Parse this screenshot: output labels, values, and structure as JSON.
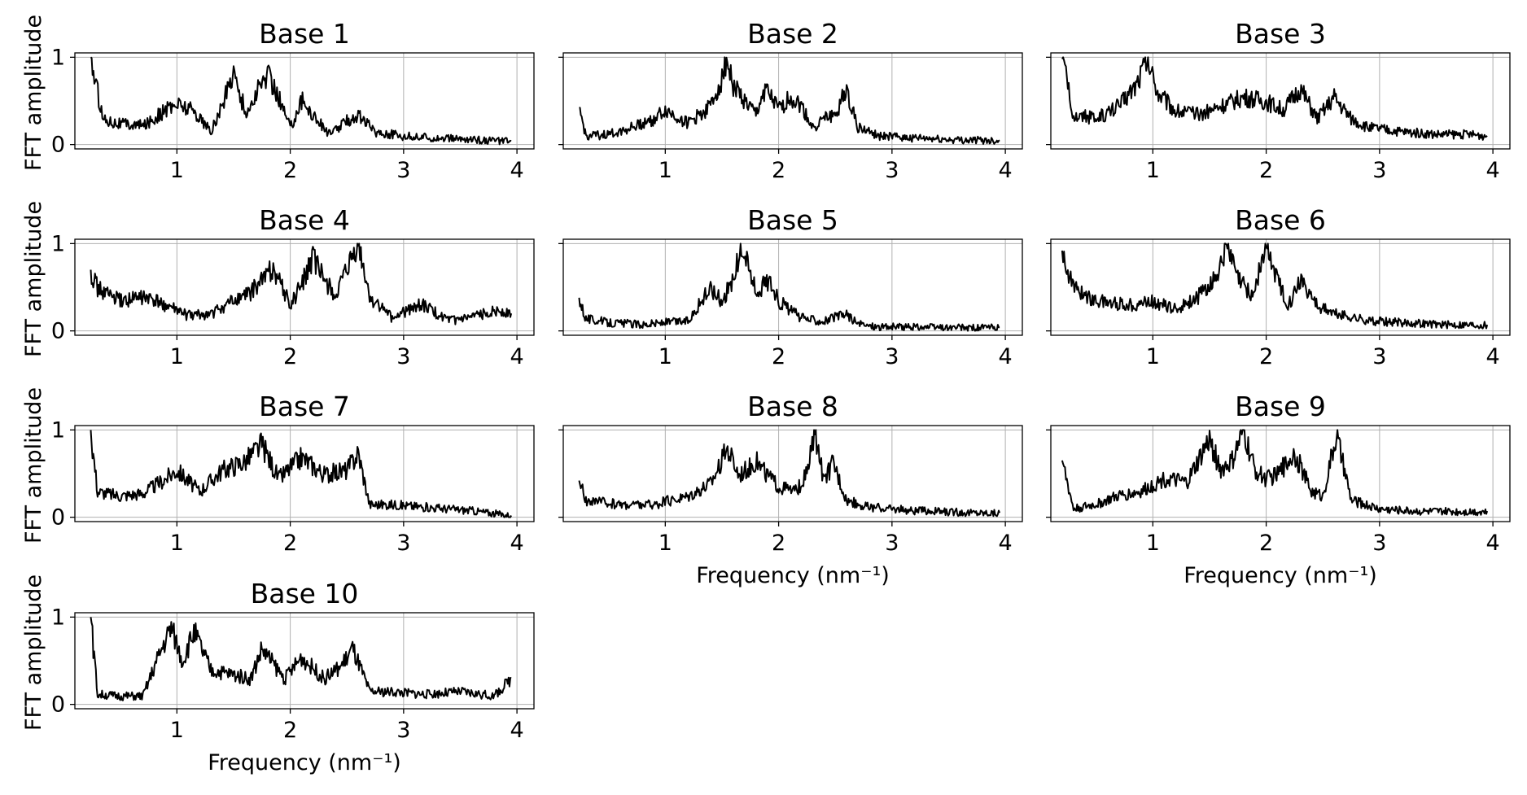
{
  "figure": {
    "chart_data": [
      {
        "type": "line",
        "title": "Base 1",
        "xlabel": "",
        "ylabel": "FFT amplitude",
        "xlim": [
          0.1,
          4.15
        ],
        "ylim": [
          -0.05,
          1.05
        ],
        "xticks": [
          1,
          2,
          3,
          4
        ],
        "yticks": [
          0,
          1
        ],
        "grid": true,
        "x": [
          0.24,
          0.35,
          0.5,
          0.7,
          0.9,
          1.0,
          1.15,
          1.3,
          1.4,
          1.5,
          1.55,
          1.62,
          1.7,
          1.8,
          1.9,
          2.0,
          2.1,
          2.2,
          2.35,
          2.5,
          2.6,
          2.75,
          3.0,
          3.3,
          3.6,
          3.95
        ],
        "y": [
          1.0,
          0.3,
          0.25,
          0.22,
          0.4,
          0.48,
          0.4,
          0.15,
          0.45,
          0.88,
          0.6,
          0.35,
          0.6,
          0.82,
          0.55,
          0.2,
          0.52,
          0.35,
          0.12,
          0.28,
          0.35,
          0.15,
          0.1,
          0.08,
          0.06,
          0.04
        ]
      },
      {
        "type": "line",
        "title": "Base 2",
        "xlabel": "",
        "ylabel": "",
        "xlim": [
          0.1,
          4.15
        ],
        "ylim": [
          -0.05,
          1.05
        ],
        "xticks": [
          1,
          2,
          3,
          4
        ],
        "yticks": [
          0,
          1
        ],
        "grid": true,
        "x": [
          0.24,
          0.3,
          0.5,
          0.7,
          0.9,
          1.0,
          1.2,
          1.4,
          1.5,
          1.54,
          1.6,
          1.7,
          1.8,
          1.88,
          2.0,
          2.1,
          2.2,
          2.3,
          2.4,
          2.5,
          2.6,
          2.7,
          2.9,
          3.2,
          3.5,
          3.95
        ],
        "y": [
          0.42,
          0.1,
          0.12,
          0.2,
          0.3,
          0.4,
          0.25,
          0.45,
          0.78,
          1.0,
          0.7,
          0.5,
          0.35,
          0.65,
          0.4,
          0.55,
          0.45,
          0.2,
          0.3,
          0.35,
          0.65,
          0.2,
          0.1,
          0.08,
          0.06,
          0.05
        ]
      },
      {
        "type": "line",
        "title": "Base 3",
        "xlabel": "",
        "ylabel": "",
        "xlim": [
          0.1,
          4.15
        ],
        "ylim": [
          -0.05,
          1.05
        ],
        "xticks": [
          1,
          2,
          3,
          4
        ],
        "yticks": [
          0,
          1
        ],
        "grid": true,
        "x": [
          0.2,
          0.3,
          0.5,
          0.7,
          0.85,
          0.95,
          1.05,
          1.2,
          1.4,
          1.6,
          1.8,
          2.0,
          2.15,
          2.3,
          2.45,
          2.6,
          2.75,
          2.9,
          3.2,
          3.5,
          3.8,
          3.95
        ],
        "y": [
          0.98,
          0.35,
          0.3,
          0.45,
          0.7,
          1.0,
          0.6,
          0.4,
          0.35,
          0.45,
          0.55,
          0.5,
          0.4,
          0.65,
          0.3,
          0.55,
          0.3,
          0.2,
          0.15,
          0.12,
          0.12,
          0.1
        ]
      },
      {
        "type": "line",
        "title": "Base 4",
        "xlabel": "",
        "ylabel": "FFT amplitude",
        "xlim": [
          0.1,
          4.15
        ],
        "ylim": [
          -0.05,
          1.05
        ],
        "xticks": [
          1,
          2,
          3,
          4
        ],
        "yticks": [
          0,
          1
        ],
        "grid": true,
        "x": [
          0.24,
          0.3,
          0.5,
          0.7,
          0.9,
          1.1,
          1.3,
          1.5,
          1.65,
          1.85,
          2.0,
          2.1,
          2.2,
          2.3,
          2.4,
          2.5,
          2.6,
          2.7,
          2.9,
          3.15,
          3.4,
          3.6,
          3.8,
          3.95
        ],
        "y": [
          0.7,
          0.5,
          0.35,
          0.4,
          0.3,
          0.18,
          0.2,
          0.35,
          0.45,
          0.75,
          0.3,
          0.55,
          0.85,
          0.6,
          0.4,
          0.7,
          1.0,
          0.4,
          0.15,
          0.32,
          0.12,
          0.15,
          0.25,
          0.2
        ]
      },
      {
        "type": "line",
        "title": "Base 5",
        "xlabel": "",
        "ylabel": "",
        "xlim": [
          0.1,
          4.15
        ],
        "ylim": [
          -0.05,
          1.05
        ],
        "xticks": [
          1,
          2,
          3,
          4
        ],
        "yticks": [
          0,
          1
        ],
        "grid": true,
        "x": [
          0.24,
          0.3,
          0.5,
          0.8,
          1.0,
          1.2,
          1.4,
          1.5,
          1.6,
          1.68,
          1.8,
          1.92,
          2.0,
          2.2,
          2.4,
          2.6,
          2.7,
          2.9,
          3.2,
          3.5,
          3.95
        ],
        "y": [
          0.38,
          0.15,
          0.1,
          0.08,
          0.1,
          0.12,
          0.5,
          0.35,
          0.6,
          1.0,
          0.45,
          0.6,
          0.35,
          0.15,
          0.12,
          0.2,
          0.08,
          0.05,
          0.05,
          0.04,
          0.04
        ]
      },
      {
        "type": "line",
        "title": "Base 6",
        "xlabel": "",
        "ylabel": "",
        "xlim": [
          0.1,
          4.15
        ],
        "ylim": [
          -0.05,
          1.05
        ],
        "xticks": [
          1,
          2,
          3,
          4
        ],
        "yticks": [
          0,
          1
        ],
        "grid": true,
        "x": [
          0.2,
          0.3,
          0.5,
          0.8,
          1.0,
          1.2,
          1.4,
          1.55,
          1.65,
          1.75,
          1.88,
          2.0,
          2.1,
          2.2,
          2.3,
          2.45,
          2.6,
          2.9,
          3.2,
          3.5,
          3.95
        ],
        "y": [
          0.92,
          0.5,
          0.35,
          0.3,
          0.35,
          0.25,
          0.4,
          0.6,
          1.0,
          0.6,
          0.4,
          0.98,
          0.6,
          0.3,
          0.62,
          0.3,
          0.2,
          0.12,
          0.1,
          0.08,
          0.07
        ]
      },
      {
        "type": "line",
        "title": "Base 7",
        "xlabel": "",
        "ylabel": "FFT amplitude",
        "xlim": [
          0.1,
          4.15
        ],
        "ylim": [
          -0.05,
          1.05
        ],
        "xticks": [
          1,
          2,
          3,
          4
        ],
        "yticks": [
          0,
          1
        ],
        "grid": true,
        "x": [
          0.24,
          0.3,
          0.5,
          0.7,
          0.9,
          1.0,
          1.2,
          1.4,
          1.6,
          1.75,
          1.9,
          2.1,
          2.3,
          2.5,
          2.6,
          2.7,
          2.9,
          3.2,
          3.6,
          3.95
        ],
        "y": [
          1.0,
          0.3,
          0.25,
          0.28,
          0.45,
          0.55,
          0.3,
          0.55,
          0.65,
          0.85,
          0.45,
          0.7,
          0.5,
          0.55,
          0.75,
          0.15,
          0.15,
          0.12,
          0.08,
          0.02
        ]
      },
      {
        "type": "line",
        "title": "Base 8",
        "xlabel": "Frequency (nm⁻¹)",
        "ylabel": "",
        "xlim": [
          0.1,
          4.15
        ],
        "ylim": [
          -0.05,
          1.05
        ],
        "xticks": [
          1,
          2,
          3,
          4
        ],
        "yticks": [
          0,
          1
        ],
        "grid": true,
        "x": [
          0.24,
          0.3,
          0.6,
          0.9,
          1.2,
          1.4,
          1.55,
          1.65,
          1.8,
          2.0,
          2.15,
          2.25,
          2.32,
          2.4,
          2.48,
          2.6,
          2.8,
          3.2,
          3.6,
          3.95
        ],
        "y": [
          0.42,
          0.2,
          0.15,
          0.15,
          0.25,
          0.4,
          0.8,
          0.5,
          0.65,
          0.35,
          0.3,
          0.5,
          1.0,
          0.4,
          0.65,
          0.2,
          0.12,
          0.08,
          0.06,
          0.05
        ]
      },
      {
        "type": "line",
        "title": "Base 9",
        "xlabel": "Frequency (nm⁻¹)",
        "ylabel": "",
        "xlim": [
          0.1,
          4.15
        ],
        "ylim": [
          -0.05,
          1.05
        ],
        "xticks": [
          1,
          2,
          3,
          4
        ],
        "yticks": [
          0,
          1
        ],
        "grid": true,
        "x": [
          0.2,
          0.3,
          0.5,
          0.7,
          0.9,
          1.1,
          1.3,
          1.5,
          1.6,
          1.7,
          1.8,
          1.9,
          2.0,
          2.1,
          2.25,
          2.4,
          2.5,
          2.62,
          2.75,
          3.0,
          3.4,
          3.95
        ],
        "y": [
          0.65,
          0.1,
          0.15,
          0.25,
          0.3,
          0.45,
          0.4,
          0.9,
          0.55,
          0.65,
          1.0,
          0.55,
          0.45,
          0.5,
          0.75,
          0.3,
          0.25,
          0.95,
          0.2,
          0.1,
          0.07,
          0.07
        ]
      },
      {
        "type": "line",
        "title": "Base 10",
        "xlabel": "Frequency (nm⁻¹)",
        "ylabel": "FFT amplitude",
        "xlim": [
          0.1,
          4.15
        ],
        "ylim": [
          -0.05,
          1.05
        ],
        "xticks": [
          1,
          2,
          3,
          4
        ],
        "yticks": [
          0,
          1
        ],
        "grid": true,
        "x": [
          0.24,
          0.3,
          0.5,
          0.7,
          0.85,
          0.95,
          1.05,
          1.15,
          1.3,
          1.5,
          1.65,
          1.75,
          1.95,
          2.1,
          2.3,
          2.45,
          2.55,
          2.7,
          2.9,
          3.2,
          3.5,
          3.8,
          3.95
        ],
        "y": [
          1.0,
          0.12,
          0.1,
          0.1,
          0.6,
          0.9,
          0.5,
          0.85,
          0.4,
          0.35,
          0.3,
          0.65,
          0.3,
          0.55,
          0.3,
          0.45,
          0.65,
          0.15,
          0.15,
          0.12,
          0.15,
          0.1,
          0.3
        ]
      }
    ]
  }
}
